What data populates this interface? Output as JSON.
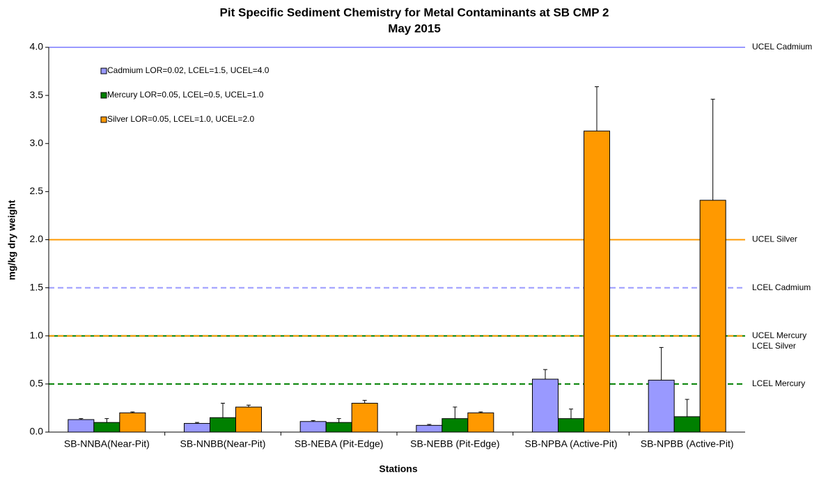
{
  "chart_data": {
    "type": "bar",
    "title": "Pit Specific Sediment Chemistry for Metal Contaminants at SB CMP 2",
    "subtitle": "May 2015",
    "x_label": "Stations",
    "y_label": "mg/kg dry weight",
    "categories": [
      "SB-NNBA(Near-Pit)",
      "SB-NNBB(Near-Pit)",
      "SB-NEBA (Pit-Edge)",
      "SB-NEBB (Pit-Edge)",
      "SB-NPBA (Active-Pit)",
      "SB-NPBB (Active-Pit)"
    ],
    "series": [
      {
        "name": "Cadmium LOR=0.02, LCEL=1.5, UCEL=4.0",
        "color": "#9999ff",
        "values": [
          0.13,
          0.09,
          0.11,
          0.07,
          0.55,
          0.54
        ],
        "errors": [
          0.01,
          0.01,
          0.01,
          0.01,
          0.1,
          0.34
        ]
      },
      {
        "name": "Mercury LOR=0.05, LCEL=0.5, UCEL=1.0",
        "color": "#008000",
        "values": [
          0.1,
          0.15,
          0.1,
          0.14,
          0.14,
          0.16
        ],
        "errors": [
          0.04,
          0.15,
          0.04,
          0.12,
          0.1,
          0.18
        ]
      },
      {
        "name": "Silver LOR=0.05, LCEL=1.0, UCEL=2.0",
        "color": "#ff9900",
        "values": [
          0.2,
          0.26,
          0.3,
          0.2,
          3.13,
          2.41
        ],
        "errors": [
          0.01,
          0.02,
          0.03,
          0.01,
          0.46,
          1.05
        ]
      }
    ],
    "reference_lines": [
      {
        "label": "UCEL Cadmium",
        "value": 4.0,
        "color": "#9999ff",
        "dashed": false
      },
      {
        "label": "UCEL Silver",
        "value": 2.0,
        "color": "#ff9900",
        "dashed": false
      },
      {
        "label": "LCEL Cadmium",
        "value": 1.5,
        "color": "#9999ff",
        "dashed": true
      },
      {
        "label": "UCEL Mercury",
        "value": 1.0,
        "color": "#008000",
        "dashed": false
      },
      {
        "label": "LCEL Silver",
        "value": 1.0,
        "color": "#ff9900",
        "dashed": true
      },
      {
        "label": "LCEL Mercury",
        "value": 0.5,
        "color": "#008000",
        "dashed": true
      }
    ],
    "ylim": [
      0,
      4
    ],
    "yticks": [
      {
        "value": 0,
        "label": "0.0"
      },
      0.5,
      {
        "value": 1,
        "label": "1.0"
      },
      1.5,
      {
        "value": 2,
        "label": "2.0"
      },
      2.5,
      {
        "value": 3,
        "label": "3.0"
      },
      3.5,
      {
        "value": 4,
        "label": "4.0"
      }
    ],
    "legend": "upper left",
    "grid": false
  }
}
